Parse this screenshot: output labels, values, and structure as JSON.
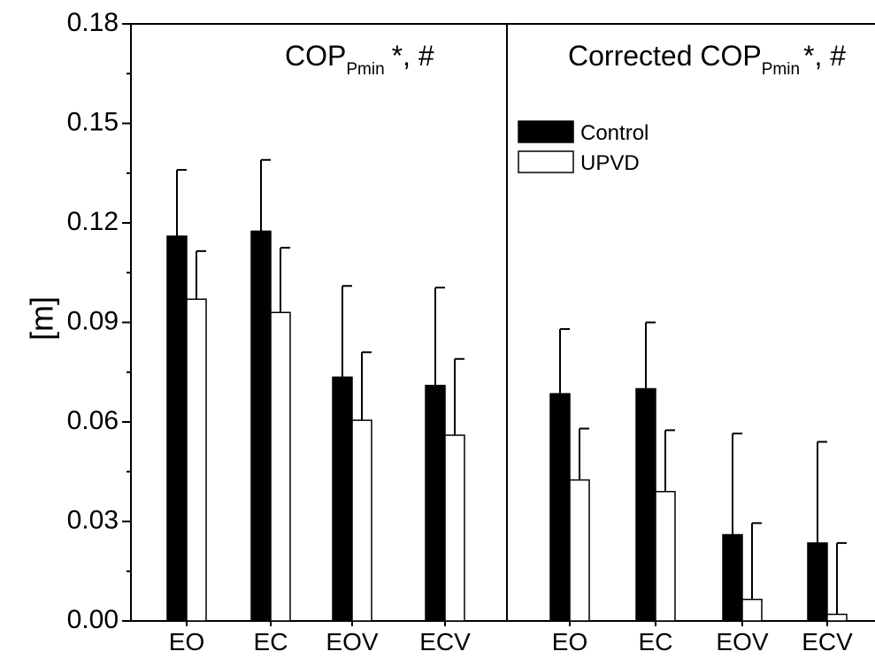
{
  "chart_data": {
    "type": "bar",
    "ylabel": "[m]",
    "ylim": [
      0,
      0.18
    ],
    "yticks": [
      "0.00",
      "0.03",
      "0.06",
      "0.09",
      "0.12",
      "0.15",
      "0.18"
    ],
    "legend": {
      "placement": "top-right of left panel boundary",
      "entries": [
        "Control",
        "UPVD"
      ]
    },
    "colors": {
      "Control": "#000000",
      "UPVD": "#ffffff"
    },
    "panels": [
      {
        "title_main": "COP",
        "title_sub": "Pmin",
        "title_marks": "*, #",
        "categories": [
          "EO",
          "EC",
          "EOV",
          "ECV"
        ],
        "series": [
          {
            "name": "Control",
            "values": [
              0.116,
              0.1175,
              0.0735,
              0.071
            ],
            "errors": [
              0.02,
              0.0215,
              0.0275,
              0.0295
            ]
          },
          {
            "name": "UPVD",
            "values": [
              0.097,
              0.093,
              0.0605,
              0.056
            ],
            "errors": [
              0.0145,
              0.0195,
              0.0205,
              0.023
            ]
          }
        ]
      },
      {
        "title_main": "Corrected COP",
        "title_sub": "Pmin",
        "title_marks": "*, #",
        "categories": [
          "EO",
          "EC",
          "EOV",
          "ECV"
        ],
        "series": [
          {
            "name": "Control",
            "values": [
              0.0685,
              0.07,
              0.026,
              0.0235
            ],
            "errors": [
              0.0195,
              0.02,
              0.0305,
              0.0305
            ]
          },
          {
            "name": "UPVD",
            "values": [
              0.0425,
              0.039,
              0.0065,
              0.002
            ],
            "errors": [
              0.0155,
              0.0185,
              0.023,
              0.0215
            ]
          }
        ]
      }
    ]
  }
}
